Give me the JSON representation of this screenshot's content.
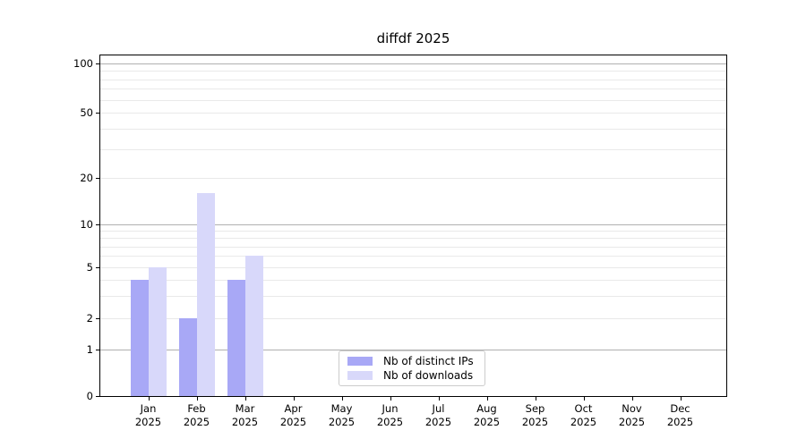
{
  "chart_data": {
    "type": "bar",
    "title": "diffdf 2025",
    "year": "2025",
    "categories": [
      "Jan",
      "Feb",
      "Mar",
      "Apr",
      "May",
      "Jun",
      "Jul",
      "Aug",
      "Sep",
      "Oct",
      "Nov",
      "Dec"
    ],
    "series": [
      {
        "name": "Nb of distinct IPs",
        "color": "#a8a8f6",
        "values": [
          4,
          2,
          4,
          0,
          0,
          0,
          0,
          0,
          0,
          0,
          0,
          0
        ]
      },
      {
        "name": "Nb of downloads",
        "color": "#d8d8fa",
        "values": [
          5,
          16,
          6,
          0,
          0,
          0,
          0,
          0,
          0,
          0,
          0,
          0
        ]
      }
    ],
    "yscale": "symlog",
    "ylim": [
      0,
      130
    ],
    "y_ticks": [
      0,
      1,
      2,
      5,
      10,
      20,
      50,
      100
    ],
    "y_major_gridlines": [
      1,
      10,
      100
    ],
    "y_minor_gridlines": [
      2,
      3,
      4,
      5,
      6,
      7,
      8,
      9,
      20,
      30,
      40,
      50,
      60,
      70,
      80,
      90
    ],
    "grid": true,
    "legend_position": "lower center",
    "xlabel": "",
    "ylabel": ""
  },
  "colors": {
    "background": "#ffffff",
    "spine": "#000000",
    "grid_major": "#b0b0b0",
    "grid_minor": "#e9e9e9",
    "text": "#000000",
    "legend_border": "#cccccc",
    "bar_distinct_ips": "#a8a8f6",
    "bar_downloads": "#d8d8fa"
  }
}
